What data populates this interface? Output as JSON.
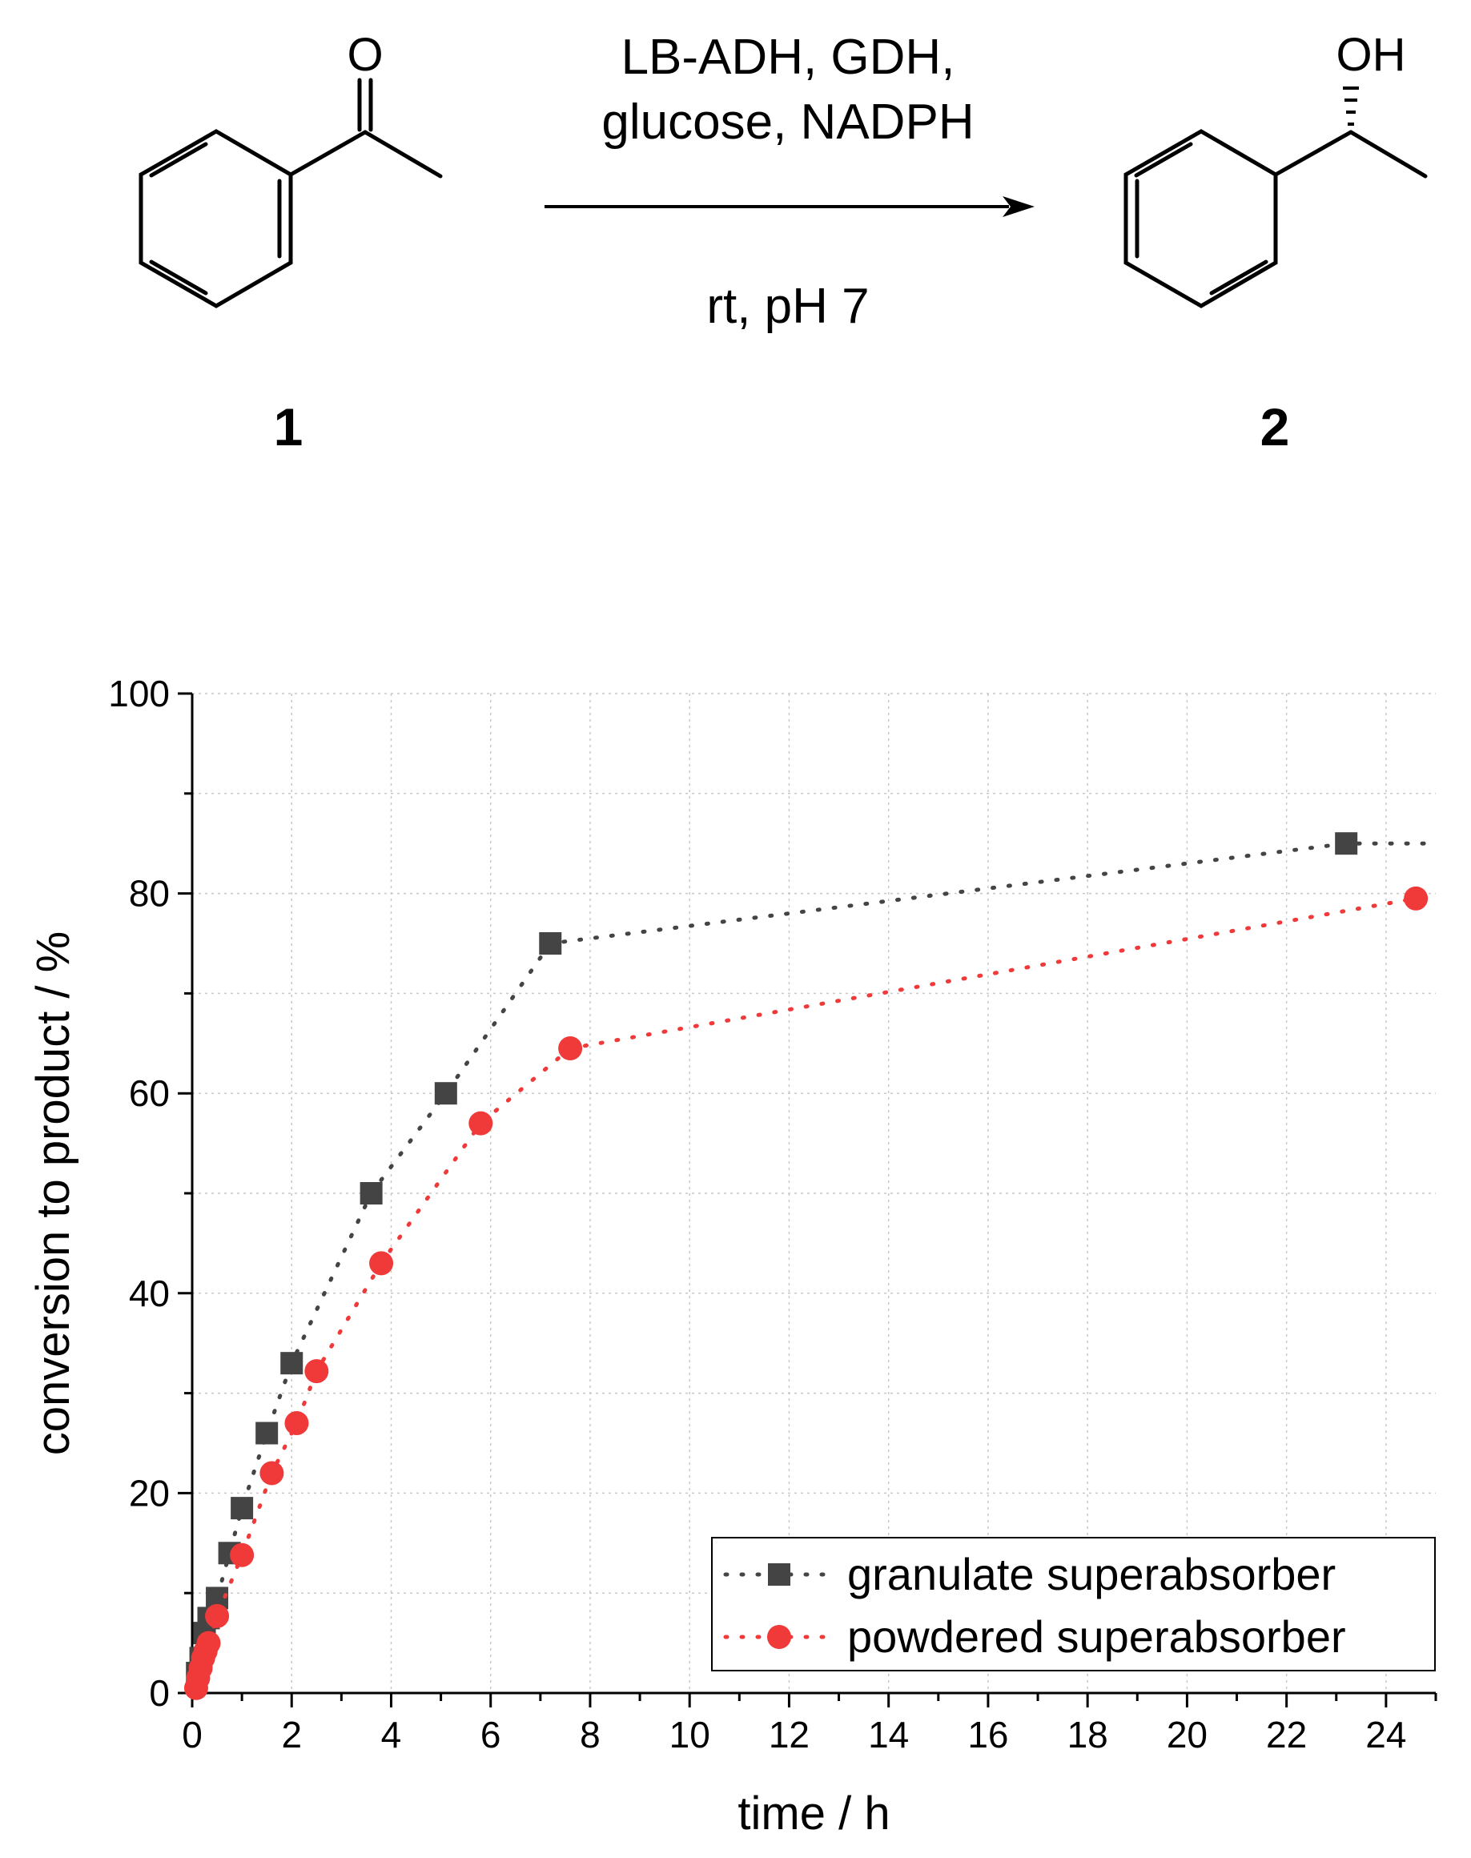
{
  "scheme": {
    "reactant_label": "1",
    "product_label": "2",
    "reactant_atom_o": "O",
    "product_atom_oh": "OH",
    "conditions_above_line1": "LB-ADH, GDH,",
    "conditions_above_line2": "glucose, NADPH",
    "conditions_below": "rt, pH 7"
  },
  "colors": {
    "granulate": "#444444",
    "powdered": "#f03a3a",
    "grid": "#c8c8c8",
    "axis": "#000000"
  },
  "chart_data": {
    "type": "scatter",
    "xlabel": "time / h",
    "ylabel": "conversion to product / %",
    "xlim": [
      0,
      25
    ],
    "ylim": [
      0,
      100
    ],
    "xticks": [
      0,
      2,
      4,
      6,
      8,
      10,
      12,
      14,
      16,
      18,
      20,
      22,
      24
    ],
    "yticks": [
      0,
      20,
      40,
      60,
      80,
      100
    ],
    "grid": true,
    "legend_position": "bottom-right",
    "series": [
      {
        "name": "granulate superabsorber",
        "marker": "square",
        "line": "dotted",
        "x": [
          0.1,
          0.17,
          0.25,
          0.33,
          0.5,
          0.75,
          1.0,
          1.5,
          2.0,
          3.6,
          5.1,
          7.2,
          23.2
        ],
        "y": [
          2,
          3.5,
          6,
          7.5,
          9.5,
          14,
          18.5,
          26,
          33,
          50,
          60,
          75,
          85
        ]
      },
      {
        "name": "powdered superabsorber",
        "marker": "circle",
        "line": "dotted",
        "x": [
          0.08,
          0.12,
          0.17,
          0.22,
          0.27,
          0.33,
          0.5,
          1.0,
          1.6,
          2.1,
          2.5,
          3.8,
          5.8,
          7.6,
          24.6
        ],
        "y": [
          0.5,
          1.5,
          2.5,
          3.5,
          4.2,
          5,
          7.7,
          13.8,
          22,
          27,
          32.2,
          43,
          57,
          64.5,
          79.5
        ]
      }
    ]
  }
}
